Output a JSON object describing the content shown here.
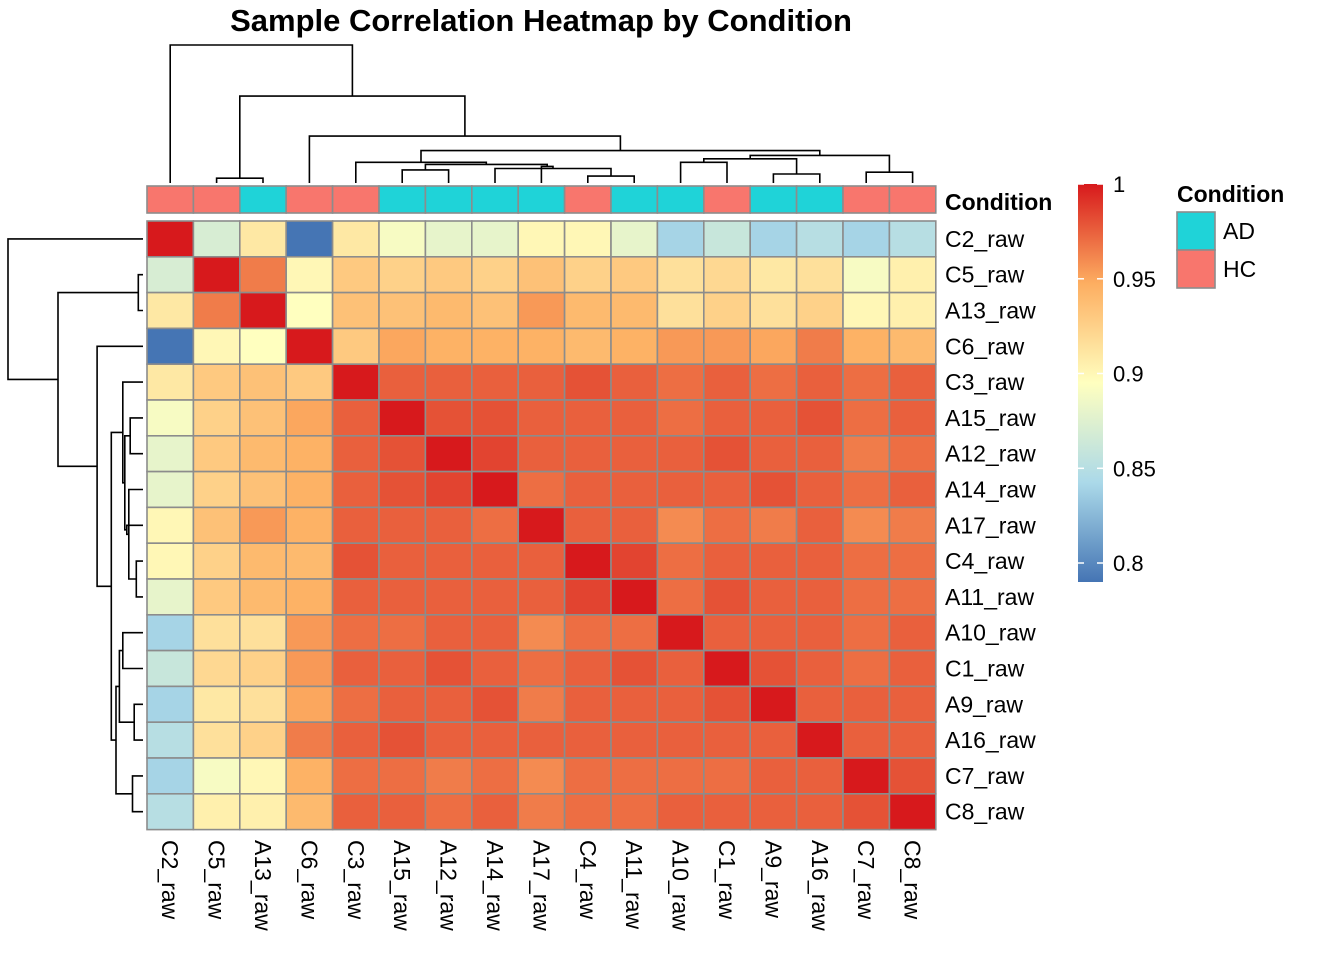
{
  "chart_data": {
    "type": "heatmap",
    "title": "Sample Correlation Heatmap by Condition",
    "samples": [
      "C2_raw",
      "C5_raw",
      "A13_raw",
      "C6_raw",
      "C3_raw",
      "A15_raw",
      "A12_raw",
      "A14_raw",
      "A17_raw",
      "C4_raw",
      "A11_raw",
      "A10_raw",
      "C1_raw",
      "A9_raw",
      "A16_raw",
      "C7_raw",
      "C8_raw"
    ],
    "row_labels": [
      "C2_raw",
      "C5_raw",
      "A13_raw",
      "C6_raw",
      "C3_raw",
      "A15_raw",
      "A12_raw",
      "A14_raw",
      "A17_raw",
      "C4_raw",
      "A11_raw",
      "A10_raw",
      "C1_raw",
      "A9_raw",
      "A16_raw",
      "C7_raw",
      "C8_raw"
    ],
    "col_labels": [
      "C2_raw",
      "C5_raw",
      "A13_raw",
      "C6_raw",
      "C3_raw",
      "A15_raw",
      "A12_raw",
      "A14_raw",
      "A17_raw",
      "C4_raw",
      "A11_raw",
      "A10_raw",
      "C1_raw",
      "A9_raw",
      "A16_raw",
      "C7_raw",
      "C8_raw"
    ],
    "condition": [
      "HC",
      "HC",
      "AD",
      "HC",
      "HC",
      "AD",
      "AD",
      "AD",
      "AD",
      "HC",
      "AD",
      "AD",
      "HC",
      "AD",
      "AD",
      "HC",
      "HC"
    ],
    "annotation_title": "Condition",
    "legend": {
      "title": "Condition",
      "entries": [
        {
          "label": "AD",
          "color": "#1FD3D8"
        },
        {
          "label": "HC",
          "color": "#F8766D"
        }
      ]
    },
    "colorbar": {
      "min": 0.79,
      "max": 1.0,
      "ticks": [
        1.0,
        0.95,
        0.9,
        0.85,
        0.8
      ],
      "tick_labels": [
        "1",
        "0.95",
        "0.9",
        "0.85",
        "0.8"
      ]
    },
    "values": [
      [
        1.0,
        0.87,
        0.91,
        0.79,
        0.91,
        0.89,
        0.88,
        0.88,
        0.9,
        0.9,
        0.88,
        0.84,
        0.86,
        0.84,
        0.85,
        0.84,
        0.85
      ],
      [
        0.87,
        1.0,
        0.965,
        0.9,
        0.93,
        0.925,
        0.93,
        0.925,
        0.935,
        0.925,
        0.93,
        0.915,
        0.92,
        0.91,
        0.915,
        0.89,
        0.905
      ],
      [
        0.91,
        0.965,
        1.0,
        0.895,
        0.935,
        0.935,
        0.94,
        0.935,
        0.955,
        0.94,
        0.94,
        0.915,
        0.925,
        0.915,
        0.925,
        0.9,
        0.905
      ],
      [
        0.79,
        0.9,
        0.895,
        1.0,
        0.93,
        0.95,
        0.945,
        0.945,
        0.945,
        0.94,
        0.945,
        0.955,
        0.955,
        0.95,
        0.965,
        0.945,
        0.94
      ],
      [
        0.91,
        0.93,
        0.935,
        0.93,
        1.0,
        0.975,
        0.975,
        0.975,
        0.975,
        0.98,
        0.975,
        0.97,
        0.975,
        0.97,
        0.975,
        0.97,
        0.975
      ],
      [
        0.89,
        0.925,
        0.935,
        0.95,
        0.975,
        1.0,
        0.98,
        0.98,
        0.975,
        0.975,
        0.975,
        0.97,
        0.975,
        0.975,
        0.98,
        0.97,
        0.975
      ],
      [
        0.88,
        0.93,
        0.94,
        0.945,
        0.975,
        0.98,
        1.0,
        0.985,
        0.975,
        0.975,
        0.975,
        0.975,
        0.98,
        0.975,
        0.975,
        0.965,
        0.97
      ],
      [
        0.88,
        0.925,
        0.935,
        0.945,
        0.975,
        0.98,
        0.985,
        1.0,
        0.97,
        0.975,
        0.975,
        0.975,
        0.975,
        0.98,
        0.975,
        0.97,
        0.975
      ],
      [
        0.9,
        0.935,
        0.955,
        0.945,
        0.975,
        0.975,
        0.975,
        0.97,
        1.0,
        0.975,
        0.975,
        0.96,
        0.97,
        0.965,
        0.975,
        0.96,
        0.965
      ],
      [
        0.9,
        0.925,
        0.94,
        0.94,
        0.98,
        0.975,
        0.975,
        0.975,
        0.975,
        1.0,
        0.985,
        0.97,
        0.975,
        0.975,
        0.975,
        0.97,
        0.97
      ],
      [
        0.88,
        0.93,
        0.94,
        0.945,
        0.975,
        0.975,
        0.975,
        0.975,
        0.975,
        0.985,
        1.0,
        0.97,
        0.98,
        0.975,
        0.975,
        0.97,
        0.97
      ],
      [
        0.84,
        0.915,
        0.915,
        0.955,
        0.97,
        0.97,
        0.975,
        0.975,
        0.96,
        0.97,
        0.97,
        1.0,
        0.975,
        0.975,
        0.975,
        0.97,
        0.975
      ],
      [
        0.86,
        0.92,
        0.925,
        0.955,
        0.975,
        0.975,
        0.98,
        0.975,
        0.97,
        0.975,
        0.98,
        0.975,
        1.0,
        0.98,
        0.975,
        0.97,
        0.975
      ],
      [
        0.84,
        0.91,
        0.915,
        0.95,
        0.97,
        0.975,
        0.975,
        0.98,
        0.965,
        0.975,
        0.975,
        0.975,
        0.98,
        1.0,
        0.975,
        0.975,
        0.975
      ],
      [
        0.85,
        0.915,
        0.925,
        0.965,
        0.975,
        0.98,
        0.975,
        0.975,
        0.975,
        0.975,
        0.975,
        0.975,
        0.975,
        0.975,
        1.0,
        0.975,
        0.975
      ],
      [
        0.84,
        0.89,
        0.9,
        0.945,
        0.97,
        0.97,
        0.965,
        0.97,
        0.96,
        0.97,
        0.97,
        0.97,
        0.97,
        0.975,
        0.975,
        1.0,
        0.98
      ],
      [
        0.85,
        0.905,
        0.905,
        0.94,
        0.975,
        0.975,
        0.97,
        0.975,
        0.965,
        0.97,
        0.97,
        0.975,
        0.975,
        0.975,
        0.975,
        0.98,
        1.0
      ]
    ],
    "dendrogram_merges": [
      [
        -2,
        -3
      ],
      [
        -11,
        -10
      ],
      [
        -14,
        -15
      ],
      [
        -16,
        -17
      ],
      [
        -6,
        -7
      ],
      [
        2,
        -8
      ],
      [
        6,
        -9
      ],
      [
        5,
        7
      ],
      [
        -5,
        8
      ],
      [
        -12,
        -13
      ],
      [
        3,
        10
      ],
      [
        11,
        4
      ],
      [
        9,
        12
      ],
      [
        -4,
        13
      ],
      [
        1,
        14
      ],
      [
        -1,
        15
      ]
    ],
    "dendrogram_heights": [
      0.35,
      0.5,
      0.65,
      0.78,
      0.95,
      1.05,
      1.2,
      1.35,
      1.5,
      1.5,
      1.75,
      2.0,
      2.35,
      3.4,
      6.3,
      10.0
    ],
    "dendrogram_max_height": 10.0
  }
}
